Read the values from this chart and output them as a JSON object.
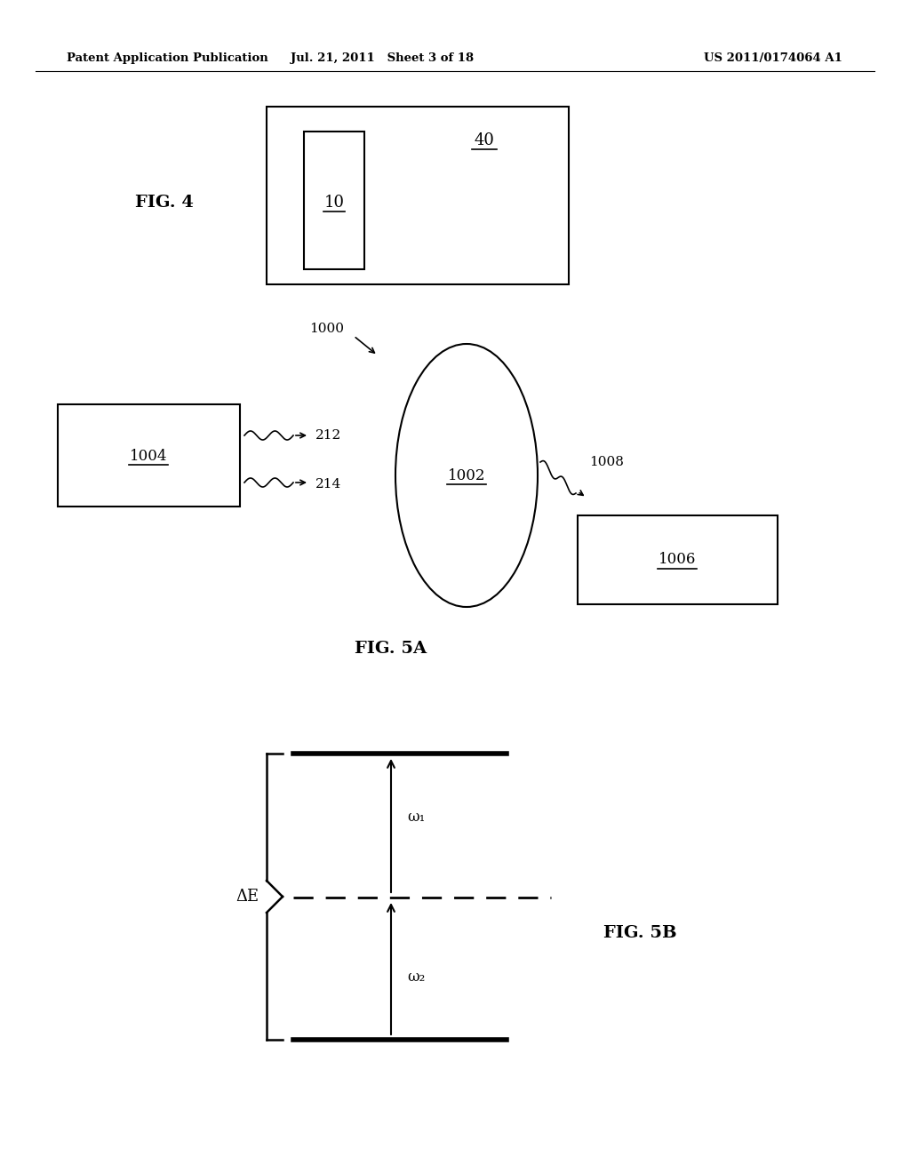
{
  "bg_color": "#ffffff",
  "header_left": "Patent Application Publication",
  "header_mid": "Jul. 21, 2011   Sheet 3 of 18",
  "header_right": "US 2011/0174064 A1",
  "fig4_label": "FIG. 4",
  "fig5a_label": "FIG. 5A",
  "fig5b_label": "FIG. 5B",
  "label_10": "10",
  "label_40": "40",
  "label_1000": "1000",
  "label_1002": "1002",
  "label_1004": "1004",
  "label_1006": "1006",
  "label_1008": "1008",
  "label_212": "212",
  "label_214": "214",
  "label_omega1": "ω₁",
  "label_omega2": "ω₂",
  "label_deltaE": "ΔE"
}
